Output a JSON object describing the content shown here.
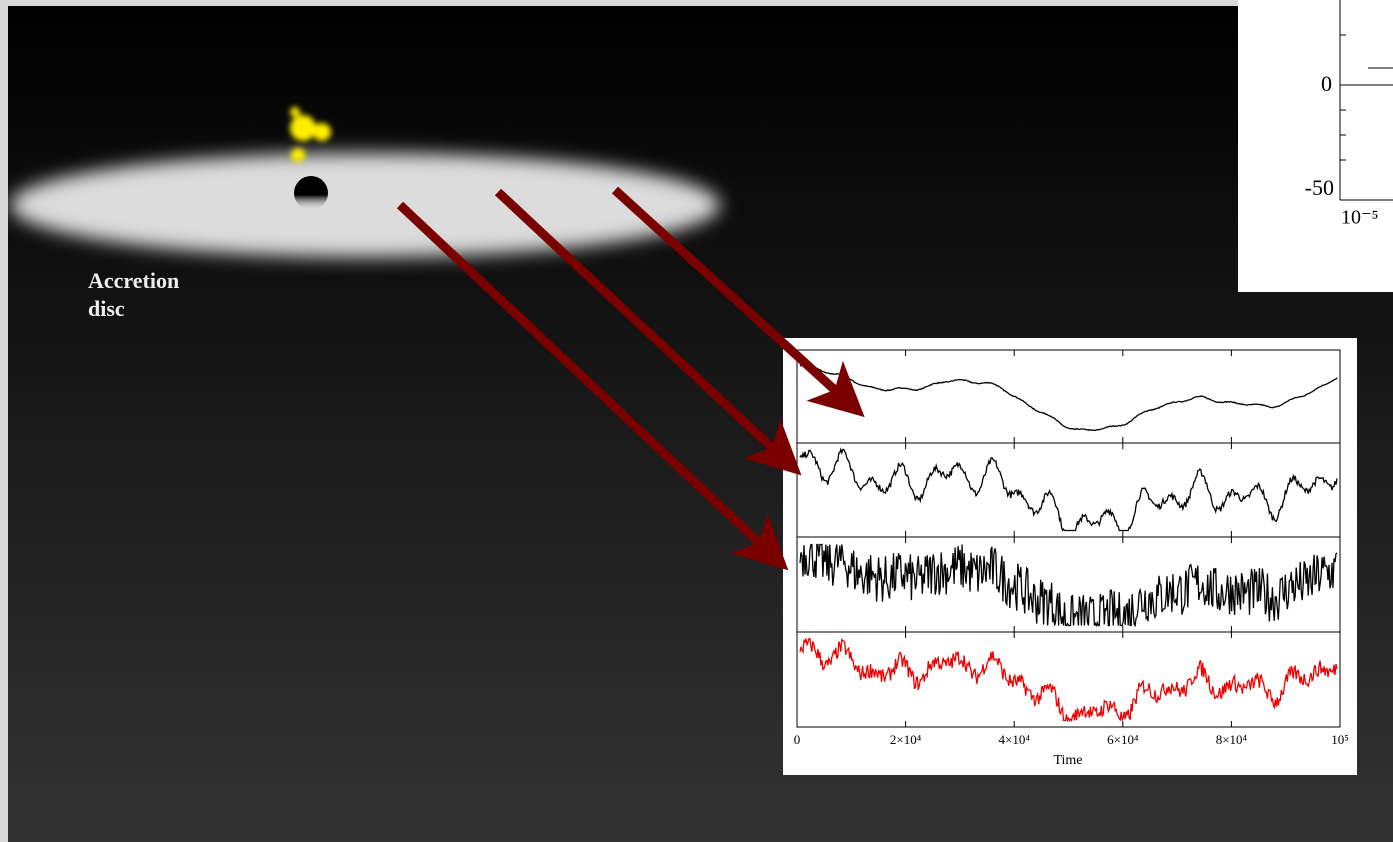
{
  "disc_label": [
    "Accretion",
    "disc"
  ],
  "inset": {
    "x_tick_labels": [
      "0",
      "2×10⁴",
      "4×10⁴",
      "6×10⁴",
      "8×10⁴",
      "10⁵"
    ],
    "x_label": "Time"
  },
  "corner_plot": {
    "y_tick_labels": [
      "0",
      "-50"
    ],
    "x_tick_label": "10⁻⁵"
  }
}
